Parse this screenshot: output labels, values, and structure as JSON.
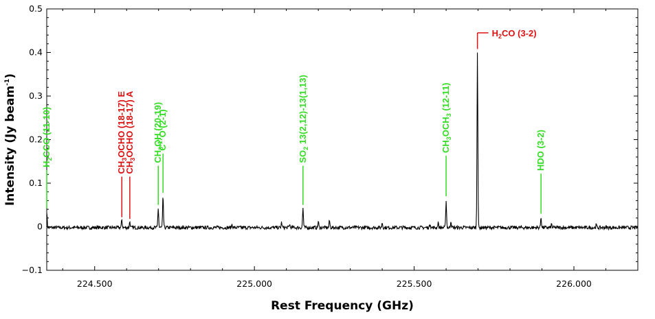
{
  "chart_data": {
    "type": "line",
    "title": "",
    "xlabel": "Rest Frequency (GHz)",
    "ylabel_main": "Intensity (Jy beam",
    "ylabel_sup": "-1",
    "ylabel_end": ")",
    "xlim": [
      224.35,
      226.2
    ],
    "ylim": [
      -0.1,
      0.5
    ],
    "x_major_ticks": [
      224.5,
      225.0,
      225.5,
      226.0
    ],
    "x_tick_labels": [
      "224.500",
      "225.000",
      "225.500",
      "226.000"
    ],
    "y_major_ticks": [
      -0.1,
      0,
      0.1,
      0.2,
      0.3,
      0.4,
      0.5
    ],
    "y_tick_labels": [
      "−0.1",
      "0",
      "0.1",
      "0.2",
      "0.3",
      "0.4",
      "0.5"
    ],
    "grid": false,
    "spectrum": {
      "name": "",
      "baseline": -0.002,
      "noise": 0.004,
      "peaks": [
        {
          "x": 224.35,
          "y": 0.038
        },
        {
          "x": 224.585,
          "y": 0.018
        },
        {
          "x": 224.61,
          "y": 0.014
        },
        {
          "x": 224.699,
          "y": 0.045
        },
        {
          "x": 224.714,
          "y": 0.072
        },
        {
          "x": 224.93,
          "y": 0.008
        },
        {
          "x": 225.085,
          "y": 0.012
        },
        {
          "x": 225.11,
          "y": 0.008
        },
        {
          "x": 225.152,
          "y": 0.045
        },
        {
          "x": 225.2,
          "y": 0.014
        },
        {
          "x": 225.235,
          "y": 0.016
        },
        {
          "x": 225.4,
          "y": 0.012
        },
        {
          "x": 225.55,
          "y": 0.01
        },
        {
          "x": 225.575,
          "y": 0.012
        },
        {
          "x": 225.6,
          "y": 0.063
        },
        {
          "x": 225.615,
          "y": 0.016
        },
        {
          "x": 225.698,
          "y": 0.408
        },
        {
          "x": 225.897,
          "y": 0.025
        },
        {
          "x": 225.93,
          "y": 0.008
        },
        {
          "x": 226.07,
          "y": 0.006
        }
      ]
    },
    "annotations": [
      {
        "x": 224.35,
        "y_top": 0.13,
        "y_bottom": 0.042,
        "color": "#33dd22",
        "orient": "vertical",
        "parts": [
          {
            "t": "H",
            "s": 0
          },
          {
            "t": "2",
            "s": -1
          },
          {
            "t": "CCO (11-10)",
            "s": 0
          }
        ]
      },
      {
        "x": 224.585,
        "y_top": 0.115,
        "y_bottom": 0.022,
        "color": "#dd1111",
        "orient": "vertical",
        "parts": [
          {
            "t": "CH",
            "s": 0
          },
          {
            "t": "3",
            "s": -1
          },
          {
            "t": "OCHO (18-17) E",
            "s": 0
          }
        ]
      },
      {
        "x": 224.61,
        "y_top": 0.115,
        "y_bottom": 0.018,
        "color": "#dd1111",
        "orient": "vertical",
        "parts": [
          {
            "t": "CH",
            "s": 0
          },
          {
            "t": "3",
            "s": -1
          },
          {
            "t": "OCHO (18-17) A",
            "s": 0
          }
        ]
      },
      {
        "x": 224.699,
        "y_top": 0.14,
        "y_bottom": 0.05,
        "color": "#33dd22",
        "orient": "vertical",
        "parts": [
          {
            "t": "CH",
            "s": 0
          },
          {
            "t": "3",
            "s": -1
          },
          {
            "t": "OH (20-19)",
            "s": 0
          }
        ]
      },
      {
        "x": 224.714,
        "y_top": 0.168,
        "y_bottom": 0.078,
        "color": "#33dd22",
        "orient": "vertical",
        "parts": [
          {
            "t": "C",
            "s": 0
          },
          {
            "t": "17",
            "s": 1
          },
          {
            "t": "O (2-1)",
            "s": 0
          }
        ]
      },
      {
        "x": 225.152,
        "y_top": 0.14,
        "y_bottom": 0.05,
        "color": "#33dd22",
        "orient": "vertical",
        "parts": [
          {
            "t": "SO",
            "s": 0
          },
          {
            "t": "2",
            "s": -1
          },
          {
            "t": " 13(2,12)-13(1,13)",
            "s": 0
          }
        ]
      },
      {
        "x": 225.6,
        "y_top": 0.163,
        "y_bottom": 0.07,
        "color": "#33dd22",
        "orient": "vertical",
        "parts": [
          {
            "t": "CH",
            "s": 0
          },
          {
            "t": "3",
            "s": -1
          },
          {
            "t": "OCH",
            "s": 0
          },
          {
            "t": "3",
            "s": -1
          },
          {
            "t": " (12-11)",
            "s": 0
          }
        ]
      },
      {
        "x": 225.698,
        "y_top": 0.445,
        "y_bottom": 0.408,
        "color": "#dd1111",
        "orient": "horizontal",
        "parts": [
          {
            "t": "H",
            "s": 0
          },
          {
            "t": "2",
            "s": -1
          },
          {
            "t": "CO (3-2)",
            "s": 0
          }
        ]
      },
      {
        "x": 225.897,
        "y_top": 0.122,
        "y_bottom": 0.03,
        "color": "#33dd22",
        "orient": "vertical",
        "parts": [
          {
            "t": "HDO (3-2)",
            "s": 0
          }
        ]
      }
    ]
  }
}
